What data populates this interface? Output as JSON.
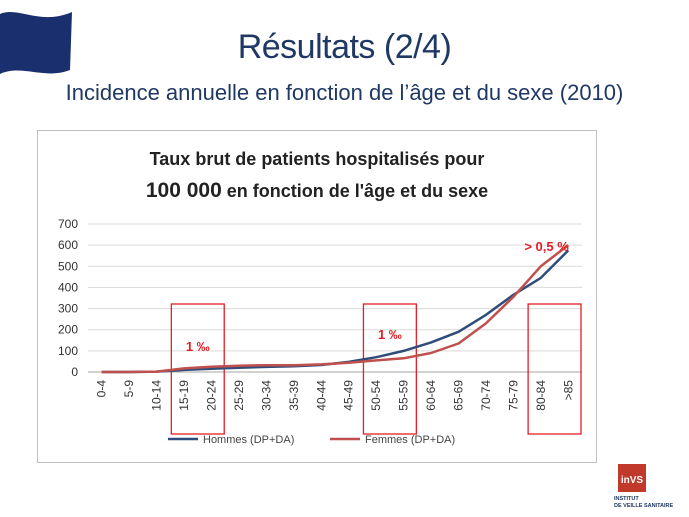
{
  "slide": {
    "title": "Résultats (2/4)",
    "subtitle": "Incidence annuelle en fonction de l’âge et du sexe (2010)"
  },
  "colors": {
    "title_blue": "#1f3864",
    "hommes": "#2e4d7b",
    "femmes": "#c0504d",
    "annotation_red": "#e31e24",
    "flag_navy": "#1a2f6e"
  },
  "logo": {
    "text": "inVS",
    "caption_line1": "INSTITUT",
    "caption_line2": "DE VEILLE SANITAIRE"
  },
  "chart_data": {
    "type": "line",
    "title_line1": "Taux brut de patients hospitalisés pour",
    "title_line2_bold": "100 000",
    "title_line2_rest": " en fonction de l'âge et du sexe",
    "categories": [
      "0-4",
      "5-9",
      "10-14",
      "15-19",
      "20-24",
      "25-29",
      "30-34",
      "35-39",
      "40-44",
      "45-49",
      "50-54",
      "55-59",
      "60-64",
      "65-69",
      "70-74",
      "75-79",
      "80-84",
      ">85"
    ],
    "series": [
      {
        "name": "Hommes (DP+DA)",
        "color": "#2e4d7b",
        "values": [
          0,
          0,
          2,
          10,
          15,
          20,
          24,
          27,
          33,
          48,
          70,
          100,
          140,
          190,
          270,
          365,
          445,
          575
        ]
      },
      {
        "name": "Femmes (DP+DA)",
        "color": "#c0504d",
        "values": [
          0,
          0,
          2,
          17,
          25,
          30,
          32,
          32,
          36,
          44,
          55,
          65,
          90,
          135,
          230,
          355,
          500,
          600
        ]
      }
    ],
    "ylim": [
      0,
      700
    ],
    "yticks": [
      "0",
      "100",
      "200",
      "300",
      "400",
      "500",
      "600",
      "700"
    ],
    "grid": true,
    "legend_position": "bottom",
    "annotations": [
      {
        "text": "1 ‰",
        "box_categories": [
          "15-19",
          "20-24"
        ]
      },
      {
        "text": "1 ‰",
        "box_categories": [
          "50-54",
          "55-59"
        ]
      },
      {
        "text": "> 0,5 %",
        "box_categories": [
          "80-84",
          ">85"
        ]
      }
    ]
  }
}
